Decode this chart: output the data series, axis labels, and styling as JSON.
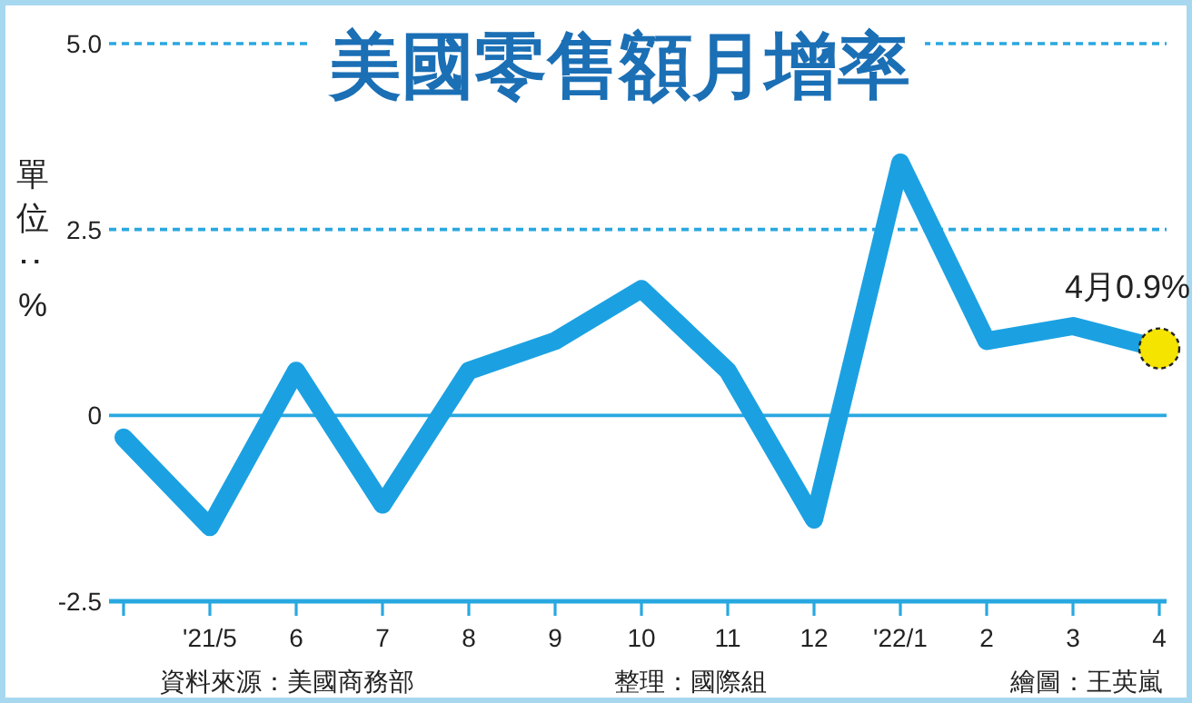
{
  "chart_data": {
    "type": "line",
    "title": "美國零售額月增率",
    "ylabel": "單位：%",
    "categories": [
      null,
      "'21/5",
      "6",
      "7",
      "8",
      "9",
      "10",
      "11",
      "12",
      "'22/1",
      "2",
      "3",
      "4"
    ],
    "series": [
      {
        "color": "#1ba1e2",
        "values": [
          -0.3,
          -1.5,
          0.6,
          -1.2,
          0.6,
          1.0,
          1.7,
          0.6,
          -1.4,
          3.4,
          1.0,
          1.2,
          0.9
        ]
      }
    ],
    "ylim": [
      -2.5,
      5.0
    ],
    "yticks": [
      -2.5,
      0,
      2.5,
      {
        "value": 5,
        "label": "5.0"
      }
    ],
    "line_style": "solid",
    "ref_lines": [
      {
        "axis": "y",
        "value": 0,
        "color": "#29a8e0",
        "line_style": "solid"
      },
      {
        "axis": "y",
        "value": 2.5,
        "color": "#29a8e0",
        "line_style": "dashed"
      },
      {
        "axis": "y",
        "value": 5,
        "color": "#29a8e0",
        "line_style": "dashed"
      }
    ],
    "annotations": [
      {
        "text": "4月0.9%",
        "x": "4",
        "y": 0.9
      },
      "資料來源：美國商務部",
      "整理：國際組",
      "繪圖：王英嵐"
    ]
  }
}
